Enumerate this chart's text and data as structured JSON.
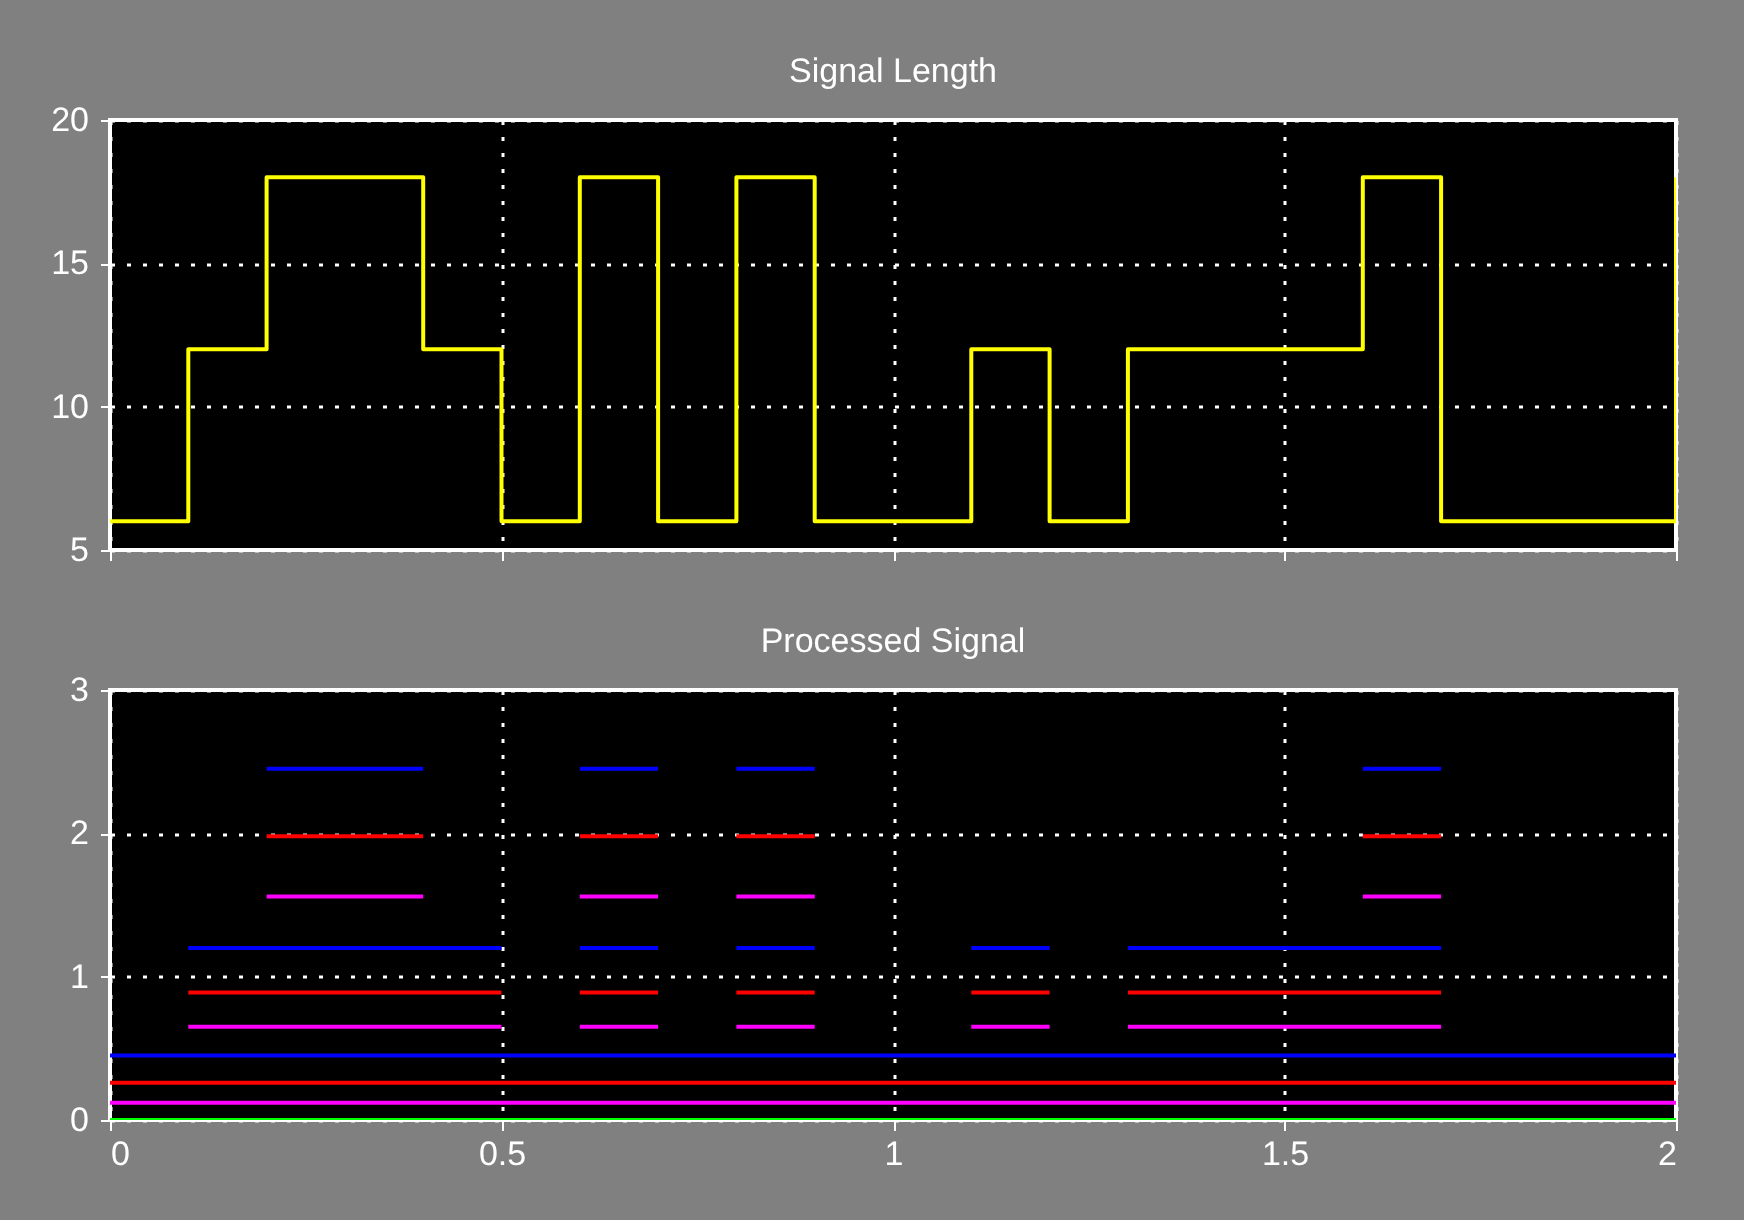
{
  "chart_data": [
    {
      "type": "step",
      "title": "Signal Length",
      "x": [
        0,
        0.1,
        0.2,
        0.3,
        0.4,
        0.5,
        0.6,
        0.7,
        0.8,
        0.9,
        1.0,
        1.1,
        1.2,
        1.3,
        1.4,
        1.5,
        1.6,
        1.7,
        1.8,
        1.9,
        2.0
      ],
      "series": [
        {
          "color": "#ffff00",
          "values": [
            6,
            12,
            18,
            18,
            12,
            6,
            18,
            6,
            18,
            6,
            6,
            12,
            6,
            12,
            12,
            12,
            18,
            6,
            6,
            6,
            18
          ]
        }
      ],
      "xlim": [
        0,
        2
      ],
      "xticks": [
        0,
        0.5,
        1,
        1.5,
        2
      ],
      "ylim": [
        5,
        20
      ],
      "yticks": [
        5,
        10,
        15,
        20
      ],
      "grid": true,
      "tick_labels": "y"
    },
    {
      "type": "line",
      "title": "Processed Signal",
      "series": [
        {
          "color": "#00ff00",
          "x": [
            0,
            2
          ],
          "values": [
            0,
            0
          ]
        },
        {
          "color": "#ff00ff",
          "x": [
            0,
            2
          ],
          "values": [
            0.12,
            0.12
          ]
        },
        {
          "color": "#ff0000",
          "x": [
            0,
            2
          ],
          "values": [
            0.26,
            0.26
          ]
        },
        {
          "color": "#0000ff",
          "x": [
            0,
            2
          ],
          "values": [
            0.45,
            0.45
          ]
        },
        {
          "color": "#ff00ff",
          "x": [
            0.1,
            0.5
          ],
          "values": [
            0.65,
            0.65
          ]
        },
        {
          "color": "#ff00ff",
          "x": [
            0.6,
            0.7
          ],
          "values": [
            0.65,
            0.65
          ]
        },
        {
          "color": "#ff00ff",
          "x": [
            0.8,
            0.9
          ],
          "values": [
            0.65,
            0.65
          ]
        },
        {
          "color": "#ff00ff",
          "x": [
            1.1,
            1.2
          ],
          "values": [
            0.65,
            0.65
          ]
        },
        {
          "color": "#ff00ff",
          "x": [
            1.3,
            1.7
          ],
          "values": [
            0.65,
            0.65
          ]
        },
        {
          "color": "#ff0000",
          "x": [
            0.1,
            0.5
          ],
          "values": [
            0.89,
            0.89
          ]
        },
        {
          "color": "#ff0000",
          "x": [
            0.6,
            0.7
          ],
          "values": [
            0.89,
            0.89
          ]
        },
        {
          "color": "#ff0000",
          "x": [
            0.8,
            0.9
          ],
          "values": [
            0.89,
            0.89
          ]
        },
        {
          "color": "#ff0000",
          "x": [
            1.1,
            1.2
          ],
          "values": [
            0.89,
            0.89
          ]
        },
        {
          "color": "#ff0000",
          "x": [
            1.3,
            1.7
          ],
          "values": [
            0.89,
            0.89
          ]
        },
        {
          "color": "#0000ff",
          "x": [
            0.1,
            0.5
          ],
          "values": [
            1.2,
            1.2
          ]
        },
        {
          "color": "#0000ff",
          "x": [
            0.6,
            0.7
          ],
          "values": [
            1.2,
            1.2
          ]
        },
        {
          "color": "#0000ff",
          "x": [
            0.8,
            0.9
          ],
          "values": [
            1.2,
            1.2
          ]
        },
        {
          "color": "#0000ff",
          "x": [
            1.1,
            1.2
          ],
          "values": [
            1.2,
            1.2
          ]
        },
        {
          "color": "#0000ff",
          "x": [
            1.3,
            1.7
          ],
          "values": [
            1.2,
            1.2
          ]
        },
        {
          "color": "#ff00ff",
          "x": [
            0.2,
            0.4
          ],
          "values": [
            1.56,
            1.56
          ]
        },
        {
          "color": "#ff00ff",
          "x": [
            0.6,
            0.7
          ],
          "values": [
            1.56,
            1.56
          ]
        },
        {
          "color": "#ff00ff",
          "x": [
            0.8,
            0.9
          ],
          "values": [
            1.56,
            1.56
          ]
        },
        {
          "color": "#ff00ff",
          "x": [
            1.6,
            1.7
          ],
          "values": [
            1.56,
            1.56
          ]
        },
        {
          "color": "#ff0000",
          "x": [
            0.2,
            0.4
          ],
          "values": [
            1.98,
            1.98
          ]
        },
        {
          "color": "#ff0000",
          "x": [
            0.6,
            0.7
          ],
          "values": [
            1.98,
            1.98
          ]
        },
        {
          "color": "#ff0000",
          "x": [
            0.8,
            0.9
          ],
          "values": [
            1.98,
            1.98
          ]
        },
        {
          "color": "#ff0000",
          "x": [
            1.6,
            1.7
          ],
          "values": [
            1.98,
            1.98
          ]
        },
        {
          "color": "#0000ff",
          "x": [
            0.2,
            0.4
          ],
          "values": [
            2.45,
            2.45
          ]
        },
        {
          "color": "#0000ff",
          "x": [
            0.6,
            0.7
          ],
          "values": [
            2.45,
            2.45
          ]
        },
        {
          "color": "#0000ff",
          "x": [
            0.8,
            0.9
          ],
          "values": [
            2.45,
            2.45
          ]
        },
        {
          "color": "#0000ff",
          "x": [
            1.6,
            1.7
          ],
          "values": [
            2.45,
            2.45
          ]
        }
      ],
      "xlim": [
        0,
        2
      ],
      "xticks": [
        0,
        0.5,
        1,
        1.5,
        2
      ],
      "ylim": [
        0,
        3
      ],
      "yticks": [
        0,
        1,
        2,
        3
      ],
      "grid": true
    }
  ]
}
